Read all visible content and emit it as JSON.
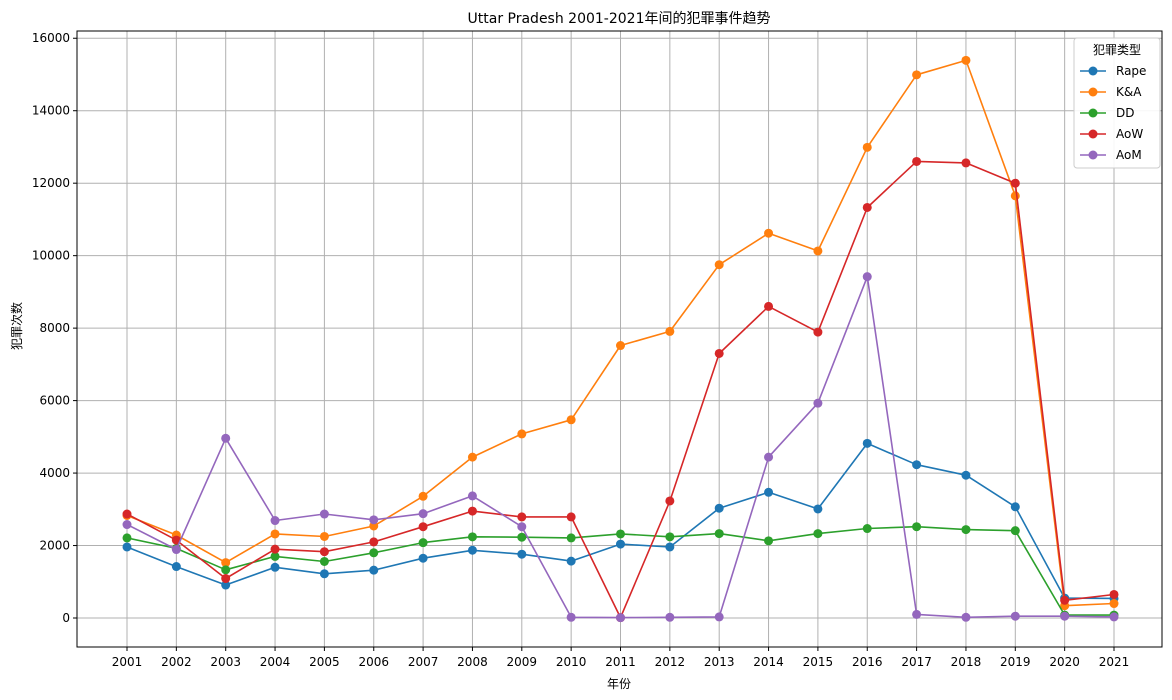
{
  "chart_data": {
    "type": "line",
    "title": "Uttar Pradesh 2001-2021年间的犯罪事件趋势",
    "xlabel": "年份",
    "ylabel": "犯罪次数",
    "x": [
      "2001",
      "2002",
      "2003",
      "2004",
      "2005",
      "2006",
      "2007",
      "2008",
      "2009",
      "2010",
      "2011",
      "2012",
      "2013",
      "2014",
      "2015",
      "2016",
      "2017",
      "2018",
      "2019",
      "2020",
      "2021"
    ],
    "ylim": [
      -800,
      16200
    ],
    "yticks": [
      0,
      2000,
      4000,
      6000,
      8000,
      10000,
      12000,
      14000,
      16000
    ],
    "grid": true,
    "legend": {
      "title": "犯罪类型",
      "placement": "top-right"
    },
    "series": [
      {
        "name": "Rape",
        "color": "#1f77b4",
        "values": [
          1960,
          1420,
          910,
          1400,
          1220,
          1320,
          1650,
          1870,
          1760,
          1570,
          2040,
          1960,
          3030,
          3470,
          3010,
          4820,
          4230,
          3940,
          3070,
          550,
          540
        ]
      },
      {
        "name": "K&A",
        "color": "#ff7f0e",
        "values": [
          2830,
          2290,
          1530,
          2320,
          2250,
          2540,
          3360,
          4440,
          5080,
          5470,
          7520,
          7910,
          9750,
          10620,
          10130,
          12990,
          14990,
          15390,
          11650,
          340,
          400
        ]
      },
      {
        "name": "DD",
        "color": "#2ca02c",
        "values": [
          2210,
          1920,
          1330,
          1700,
          1560,
          1800,
          2080,
          2240,
          2230,
          2210,
          2320,
          2240,
          2330,
          2130,
          2330,
          2470,
          2520,
          2440,
          2410,
          80,
          80
        ]
      },
      {
        "name": "AoW",
        "color": "#d62728",
        "values": [
          2870,
          2150,
          1090,
          1900,
          1830,
          2100,
          2520,
          2950,
          2790,
          2790,
          10,
          3230,
          7300,
          8600,
          7890,
          11330,
          12600,
          12560,
          12000,
          490,
          650
        ]
      },
      {
        "name": "AoM",
        "color": "#9467bd",
        "values": [
          2580,
          1890,
          4960,
          2690,
          2870,
          2710,
          2880,
          3370,
          2520,
          20,
          10,
          20,
          30,
          4440,
          5930,
          9420,
          100,
          20,
          50,
          50,
          30
        ]
      }
    ]
  }
}
